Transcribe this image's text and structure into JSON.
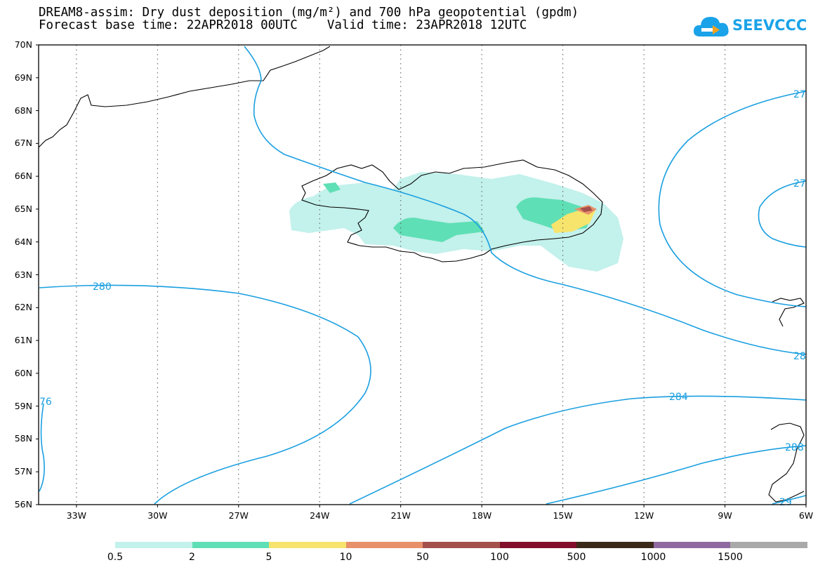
{
  "title": {
    "line1": "DREAM8-assim: Dry dust deposition (mg/m²) and 700 hPa geopotential (gpdm)",
    "line2": "Forecast base time: 22APR2018 00UTC    Valid time: 23APR2018 12UTC"
  },
  "logo": {
    "text": "SEEVCCC",
    "icon": "cloud-icon",
    "color": "#1aa3e8"
  },
  "axes": {
    "lat_labels": [
      "70N",
      "69N",
      "68N",
      "67N",
      "66N",
      "65N",
      "64N",
      "63N",
      "62N",
      "61N",
      "60N",
      "59N",
      "58N",
      "57N",
      "56N"
    ],
    "lon_labels": [
      "33W",
      "30W",
      "27W",
      "24W",
      "21W",
      "18W",
      "15W",
      "12W",
      "9W",
      "6W"
    ],
    "lat_range": [
      56,
      70
    ],
    "lon_range": [
      -34.4,
      -6
    ],
    "grid": "dotted"
  },
  "contours": {
    "color": "#1a9fe0",
    "labels": [
      "280",
      "284",
      "27",
      "27",
      "28",
      "288",
      "29",
      "76"
    ]
  },
  "colorbar": {
    "colors": [
      "#c3f1ec",
      "#5fdfb5",
      "#f7e46c",
      "#e8906a",
      "#a5514b",
      "#820e2b",
      "#3b2a1a",
      "#8f6aa1",
      "#a9a9a9"
    ],
    "labels": [
      "0.5",
      "2",
      "5",
      "10",
      "50",
      "100",
      "500",
      "1000",
      "1500"
    ]
  }
}
